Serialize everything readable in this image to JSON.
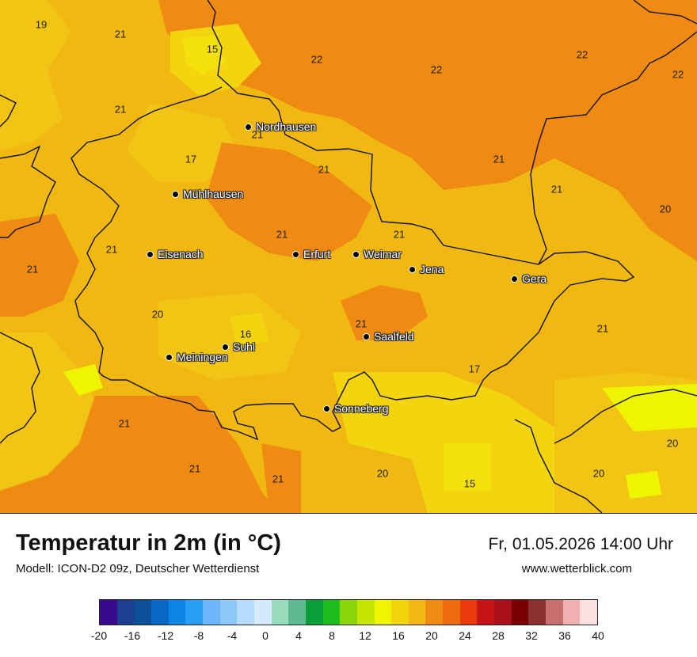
{
  "map": {
    "cities": [
      {
        "name": "Nordhausen"
      },
      {
        "name": "Mühlhausen"
      },
      {
        "name": "Eisenach"
      },
      {
        "name": "Erfurt"
      },
      {
        "name": "Weimar"
      },
      {
        "name": "Jena"
      },
      {
        "name": "Gera"
      },
      {
        "name": "Saalfeld"
      },
      {
        "name": "Suhl"
      },
      {
        "name": "Meiningen"
      },
      {
        "name": "Sonneberg"
      }
    ],
    "temperature_labels": [
      "19",
      "21",
      "15",
      "22",
      "22",
      "22",
      "22",
      "21",
      "21",
      "17",
      "21",
      "21",
      "21",
      "20",
      "21",
      "21",
      "21",
      "21",
      "20",
      "21",
      "16",
      "21",
      "17",
      "21",
      "20",
      "21",
      "21",
      "20",
      "15",
      "20"
    ]
  },
  "footer": {
    "title": "Temperatur in 2m (in °C)",
    "model": "Modell: ICON-D2 09z, Deutscher Wetterdienst",
    "datetime": "Fr, 01.05.2026 14:00 Uhr",
    "website": "www.wetterblick.com"
  },
  "legend": {
    "colors": [
      "#3a0a8c",
      "#1c3f8f",
      "#0b4f96",
      "#0868c4",
      "#0a85e6",
      "#2a9ef6",
      "#6cb8fb",
      "#8ec8fb",
      "#b5dcfc",
      "#d5e9fd",
      "#96dcbc",
      "#5fba94",
      "#0a9e3a",
      "#1ebc1e",
      "#8ad40c",
      "#c6e600",
      "#eff500",
      "#f2d50f",
      "#f2b812",
      "#f08c14",
      "#ef6b10",
      "#e93a0e",
      "#c81414",
      "#a8101a",
      "#7a0000",
      "#8b3030",
      "#c87070",
      "#efb0b0",
      "#fde0e0"
    ],
    "tick_labels": [
      "-20",
      "-16",
      "-12",
      "-8",
      "-4",
      "0",
      "4",
      "8",
      "12",
      "16",
      "20",
      "24",
      "28",
      "32",
      "36",
      "40"
    ]
  }
}
